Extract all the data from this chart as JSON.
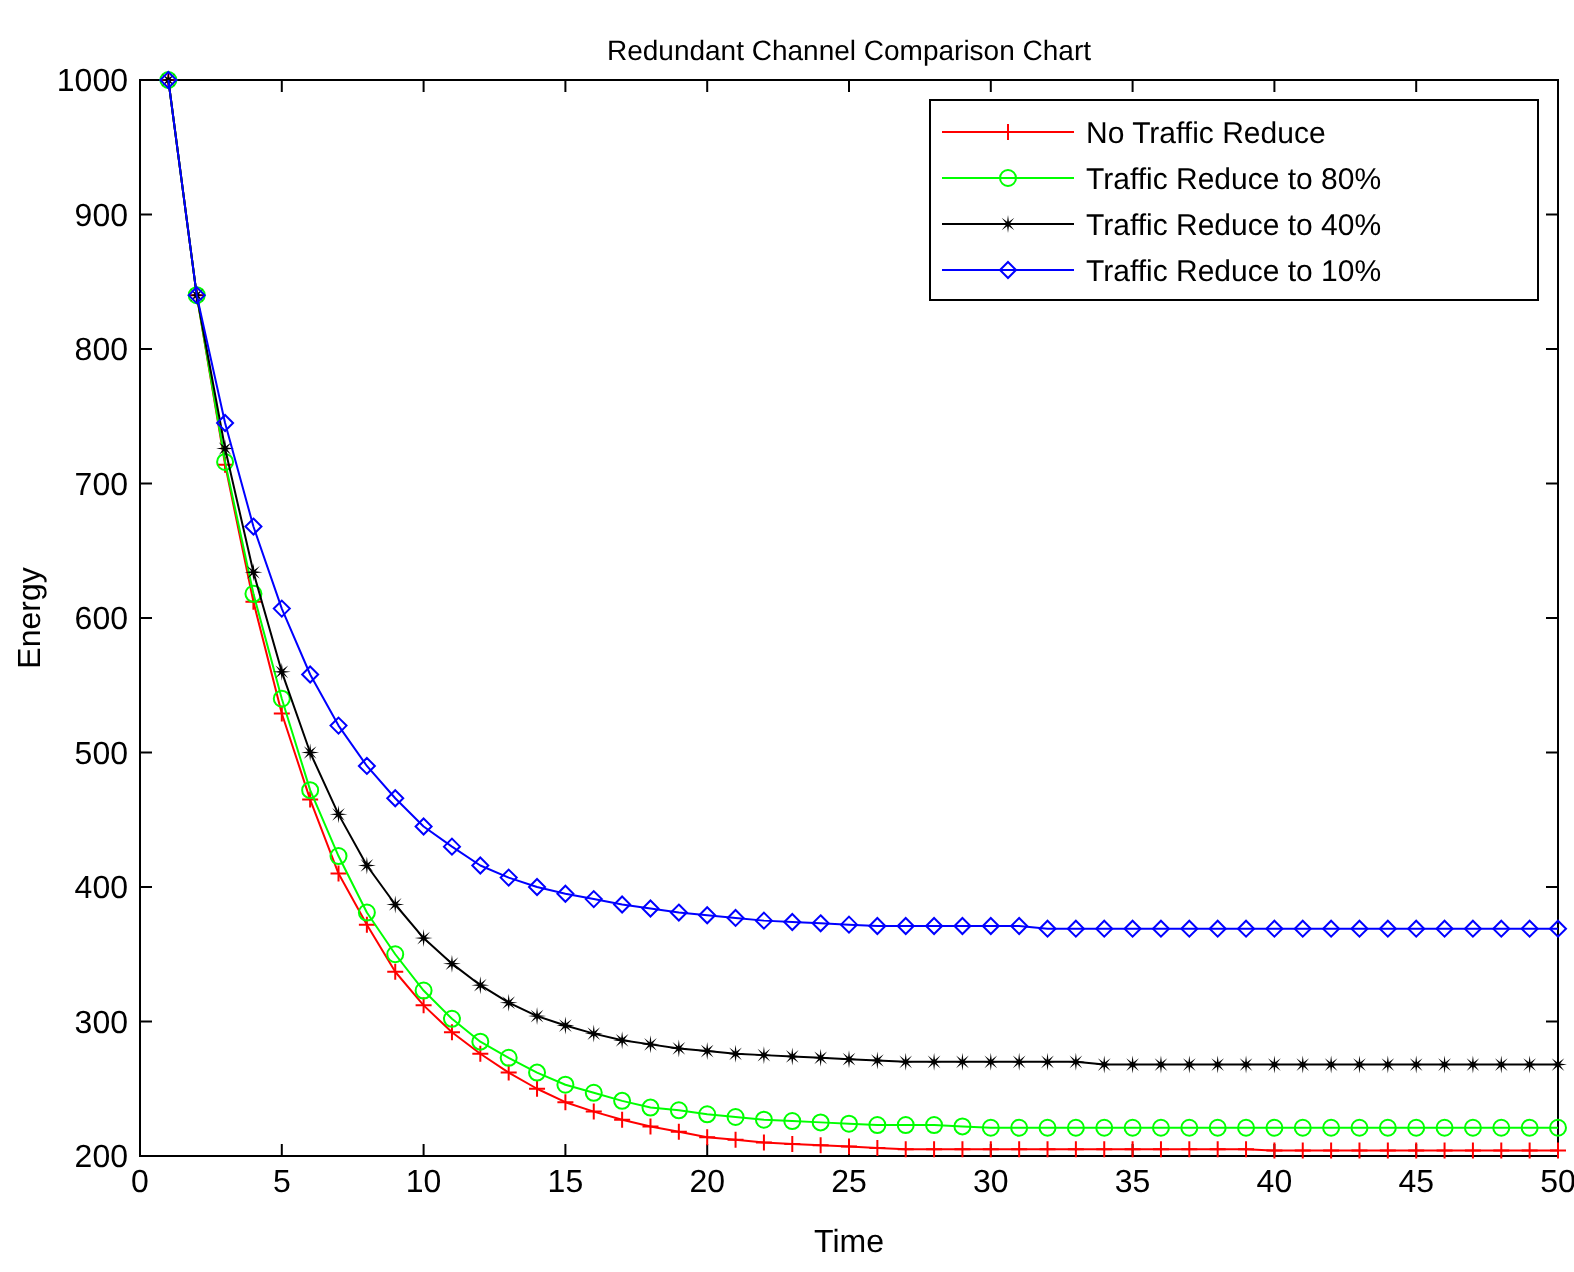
{
  "chart_data": {
    "type": "line",
    "title": "Redundant Channel Comparison Chart",
    "xlabel": "Time",
    "ylabel": "Energy",
    "x": [
      1,
      2,
      3,
      4,
      5,
      6,
      7,
      8,
      9,
      10,
      11,
      12,
      13,
      14,
      15,
      16,
      17,
      18,
      19,
      20,
      21,
      22,
      23,
      24,
      25,
      26,
      27,
      28,
      29,
      30,
      31,
      32,
      33,
      34,
      35,
      36,
      37,
      38,
      39,
      40,
      41,
      42,
      43,
      44,
      45,
      46,
      47,
      48,
      49,
      50
    ],
    "series": [
      {
        "name": "No Traffic Reduce",
        "color": "#ff0000",
        "marker": "cross",
        "values": [
          1000,
          840,
          714,
          612,
          529,
          465,
          410,
          372,
          337,
          312,
          292,
          276,
          262,
          250,
          240,
          233,
          227,
          222,
          218,
          214,
          212,
          210,
          209,
          208,
          207,
          206,
          205,
          205,
          205,
          205,
          205,
          205,
          205,
          205,
          205,
          205,
          205,
          205,
          205,
          204,
          204,
          204,
          204,
          204,
          204,
          204,
          204,
          204,
          204,
          204
        ]
      },
      {
        "name": "Traffic Reduce to 80%",
        "color": "#00ff00",
        "marker": "circle",
        "values": [
          1000,
          840,
          716,
          618,
          540,
          472,
          423,
          381,
          350,
          323,
          302,
          285,
          273,
          262,
          253,
          247,
          241,
          236,
          234,
          231,
          229,
          227,
          226,
          225,
          224,
          223,
          223,
          223,
          222,
          221,
          221,
          221,
          221,
          221,
          221,
          221,
          221,
          221,
          221,
          221,
          221,
          221,
          221,
          221,
          221,
          221,
          221,
          221,
          221,
          221
        ]
      },
      {
        "name": "Traffic Reduce to 40%",
        "color": "#000000",
        "marker": "star",
        "values": [
          1000,
          840,
          726,
          634,
          560,
          500,
          454,
          416,
          387,
          362,
          343,
          327,
          314,
          304,
          297,
          291,
          286,
          283,
          280,
          278,
          276,
          275,
          274,
          273,
          272,
          271,
          270,
          270,
          270,
          270,
          270,
          270,
          270,
          268,
          268,
          268,
          268,
          268,
          268,
          268,
          268,
          268,
          268,
          268,
          268,
          268,
          268,
          268,
          268,
          268
        ]
      },
      {
        "name": "Traffic Reduce to 10%",
        "color": "#0000ff",
        "marker": "diamond",
        "values": [
          1000,
          840,
          745,
          668,
          607,
          558,
          520,
          490,
          466,
          445,
          430,
          416,
          407,
          400,
          395,
          391,
          387,
          384,
          381,
          379,
          377,
          375,
          374,
          373,
          372,
          371,
          371,
          371,
          371,
          371,
          371,
          369,
          369,
          369,
          369,
          369,
          369,
          369,
          369,
          369,
          369,
          369,
          369,
          369,
          369,
          369,
          369,
          369,
          369,
          369
        ]
      }
    ],
    "xlim": [
      0,
      50
    ],
    "xticks": [
      0,
      5,
      10,
      15,
      20,
      25,
      30,
      35,
      40,
      45,
      50
    ],
    "ylim": [
      200,
      1000
    ],
    "yticks": [
      200,
      300,
      400,
      500,
      600,
      700,
      800,
      900,
      1000
    ],
    "grid": false,
    "legend": "top right",
    "line_style": "solid"
  }
}
